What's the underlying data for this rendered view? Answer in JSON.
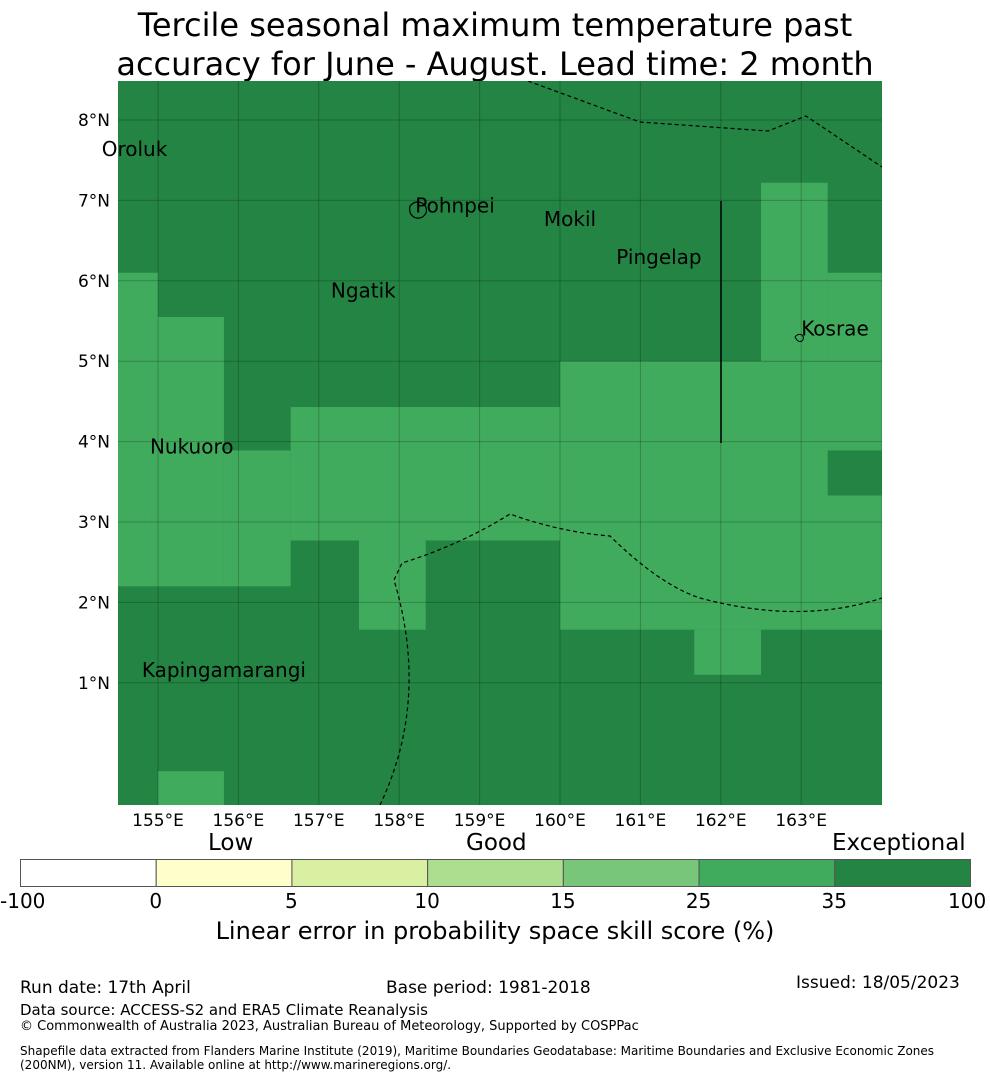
{
  "title": {
    "line1": "Tercile seasonal maximum temperature past",
    "line2": "accuracy for June - August. Lead time: 2 month"
  },
  "map": {
    "lat_ticks": [
      "8°N",
      "7°N",
      "6°N",
      "5°N",
      "4°N",
      "3°N",
      "2°N",
      "1°N"
    ],
    "lon_ticks": [
      "155°E",
      "156°E",
      "157°E",
      "158°E",
      "159°E",
      "160°E",
      "161°E",
      "162°E",
      "163°E"
    ],
    "places": [
      {
        "name": "Oroluk",
        "lon": 154.3,
        "lat": 7.55
      },
      {
        "name": "Pohnpei",
        "lon": 158.2,
        "lat": 6.85
      },
      {
        "name": "Mokil",
        "lon": 159.8,
        "lat": 6.68
      },
      {
        "name": "Pingelap",
        "lon": 160.7,
        "lat": 6.21
      },
      {
        "name": "Ngatik",
        "lon": 157.15,
        "lat": 5.79
      },
      {
        "name": "Kosrae",
        "lon": 163.0,
        "lat": 5.32
      },
      {
        "name": "Nukuoro",
        "lon": 154.9,
        "lat": 3.85
      },
      {
        "name": "Kapingamarangi",
        "lon": 154.8,
        "lat": 1.07
      }
    ],
    "colors": {
      "exceptional": "#238443",
      "very_good": "#41ab5d"
    }
  },
  "colorbar": {
    "categories": [
      "Low",
      "Good",
      "Exceptional"
    ],
    "ticks": [
      "-100",
      "0",
      "5",
      "10",
      "15",
      "25",
      "35",
      "100"
    ],
    "colors": [
      "#ffffff",
      "#ffffcc",
      "#d9f0a3",
      "#addd8e",
      "#78c679",
      "#41ab5d",
      "#238443"
    ],
    "label": "Linear error in probability space skill score (%)"
  },
  "footer": {
    "run_date": "Run date: 17th April",
    "base_period": "Base period: 1981-2018",
    "issued": "Issued: 18/05/2023",
    "data_source": "Data source: ACCESS-S2 and ERA5 Climate Reanalysis",
    "copyright": "© Commonwealth of Australia 2023, Australian Bureau of Meteorology, Supported by COSPPac",
    "shapefile_line1": "Shapefile data extracted from Flanders Marine Institute (2019), Maritime Boundaries Geodatabase: Maritime Boundaries and Exclusive Economic Zones",
    "shapefile_line2": "(200NM), version 11. Available online at http://www.marineregions.org/."
  }
}
